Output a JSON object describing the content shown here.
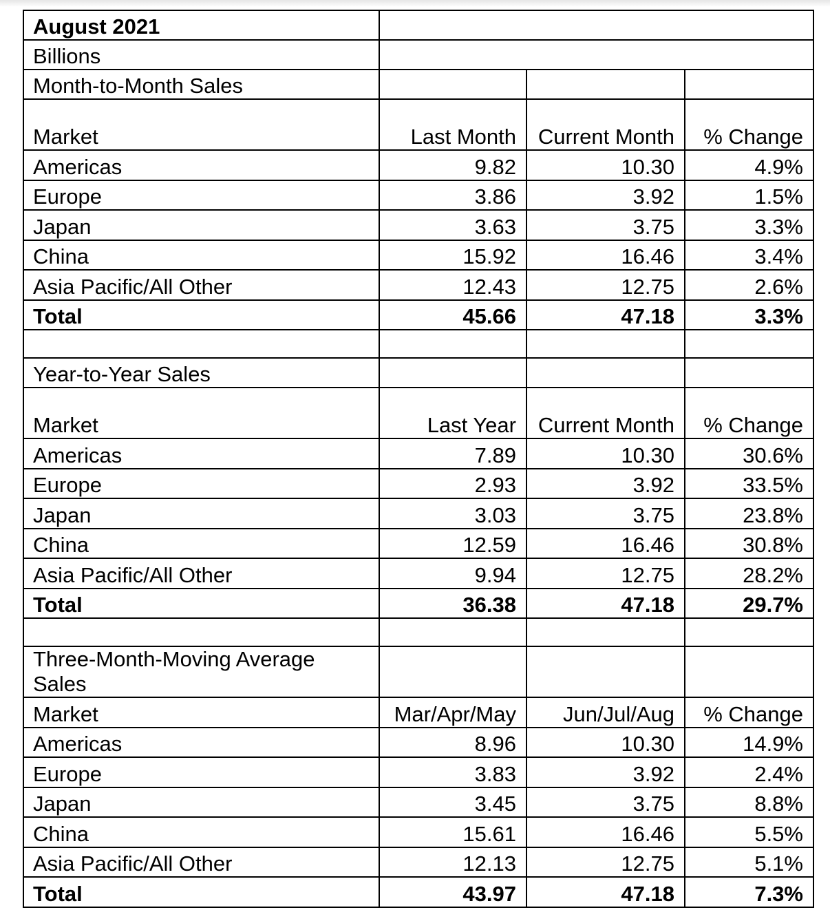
{
  "title": "August 2021",
  "unit": "Billions",
  "sections": [
    {
      "heading": "Month-to-Month Sales",
      "columns": [
        "Market",
        "Last Month",
        "Current Month",
        "% Change"
      ],
      "rows": [
        {
          "market": "Americas",
          "a": "9.82",
          "b": "10.30",
          "c": "4.9%"
        },
        {
          "market": "Europe",
          "a": "3.86",
          "b": "3.92",
          "c": "1.5%"
        },
        {
          "market": "Japan",
          "a": "3.63",
          "b": "3.75",
          "c": "3.3%"
        },
        {
          "market": "China",
          "a": "15.92",
          "b": "16.46",
          "c": "3.4%"
        },
        {
          "market": "Asia Pacific/All Other",
          "a": "12.43",
          "b": "12.75",
          "c": "2.6%"
        }
      ],
      "total": {
        "market": "Total",
        "a": "45.66",
        "b": "47.18",
        "c": "3.3%"
      }
    },
    {
      "heading": "Year-to-Year Sales",
      "columns": [
        "Market",
        "Last Year",
        "Current Month",
        "% Change"
      ],
      "rows": [
        {
          "market": "Americas",
          "a": "7.89",
          "b": "10.30",
          "c": "30.6%"
        },
        {
          "market": "Europe",
          "a": "2.93",
          "b": "3.92",
          "c": "33.5%"
        },
        {
          "market": "Japan",
          "a": "3.03",
          "b": "3.75",
          "c": "23.8%"
        },
        {
          "market": "China",
          "a": "12.59",
          "b": "16.46",
          "c": "30.8%"
        },
        {
          "market": "Asia Pacific/All Other",
          "a": "9.94",
          "b": "12.75",
          "c": "28.2%"
        }
      ],
      "total": {
        "market": "Total",
        "a": "36.38",
        "b": "47.18",
        "c": "29.7%"
      }
    },
    {
      "heading": "Three-Month-Moving Average Sales",
      "columns": [
        "Market",
        "Mar/Apr/May",
        "Jun/Jul/Aug",
        "% Change"
      ],
      "rows": [
        {
          "market": "Americas",
          "a": "8.96",
          "b": "10.30",
          "c": "14.9%"
        },
        {
          "market": "Europe",
          "a": "3.83",
          "b": "3.92",
          "c": "2.4%"
        },
        {
          "market": "Japan",
          "a": "3.45",
          "b": "3.75",
          "c": "8.8%"
        },
        {
          "market": "China",
          "a": "15.61",
          "b": "16.46",
          "c": "5.5%"
        },
        {
          "market": "Asia Pacific/All Other",
          "a": "12.13",
          "b": "12.75",
          "c": "5.1%"
        }
      ],
      "total": {
        "market": "Total",
        "a": "43.97",
        "b": "47.18",
        "c": "7.3%"
      }
    }
  ]
}
